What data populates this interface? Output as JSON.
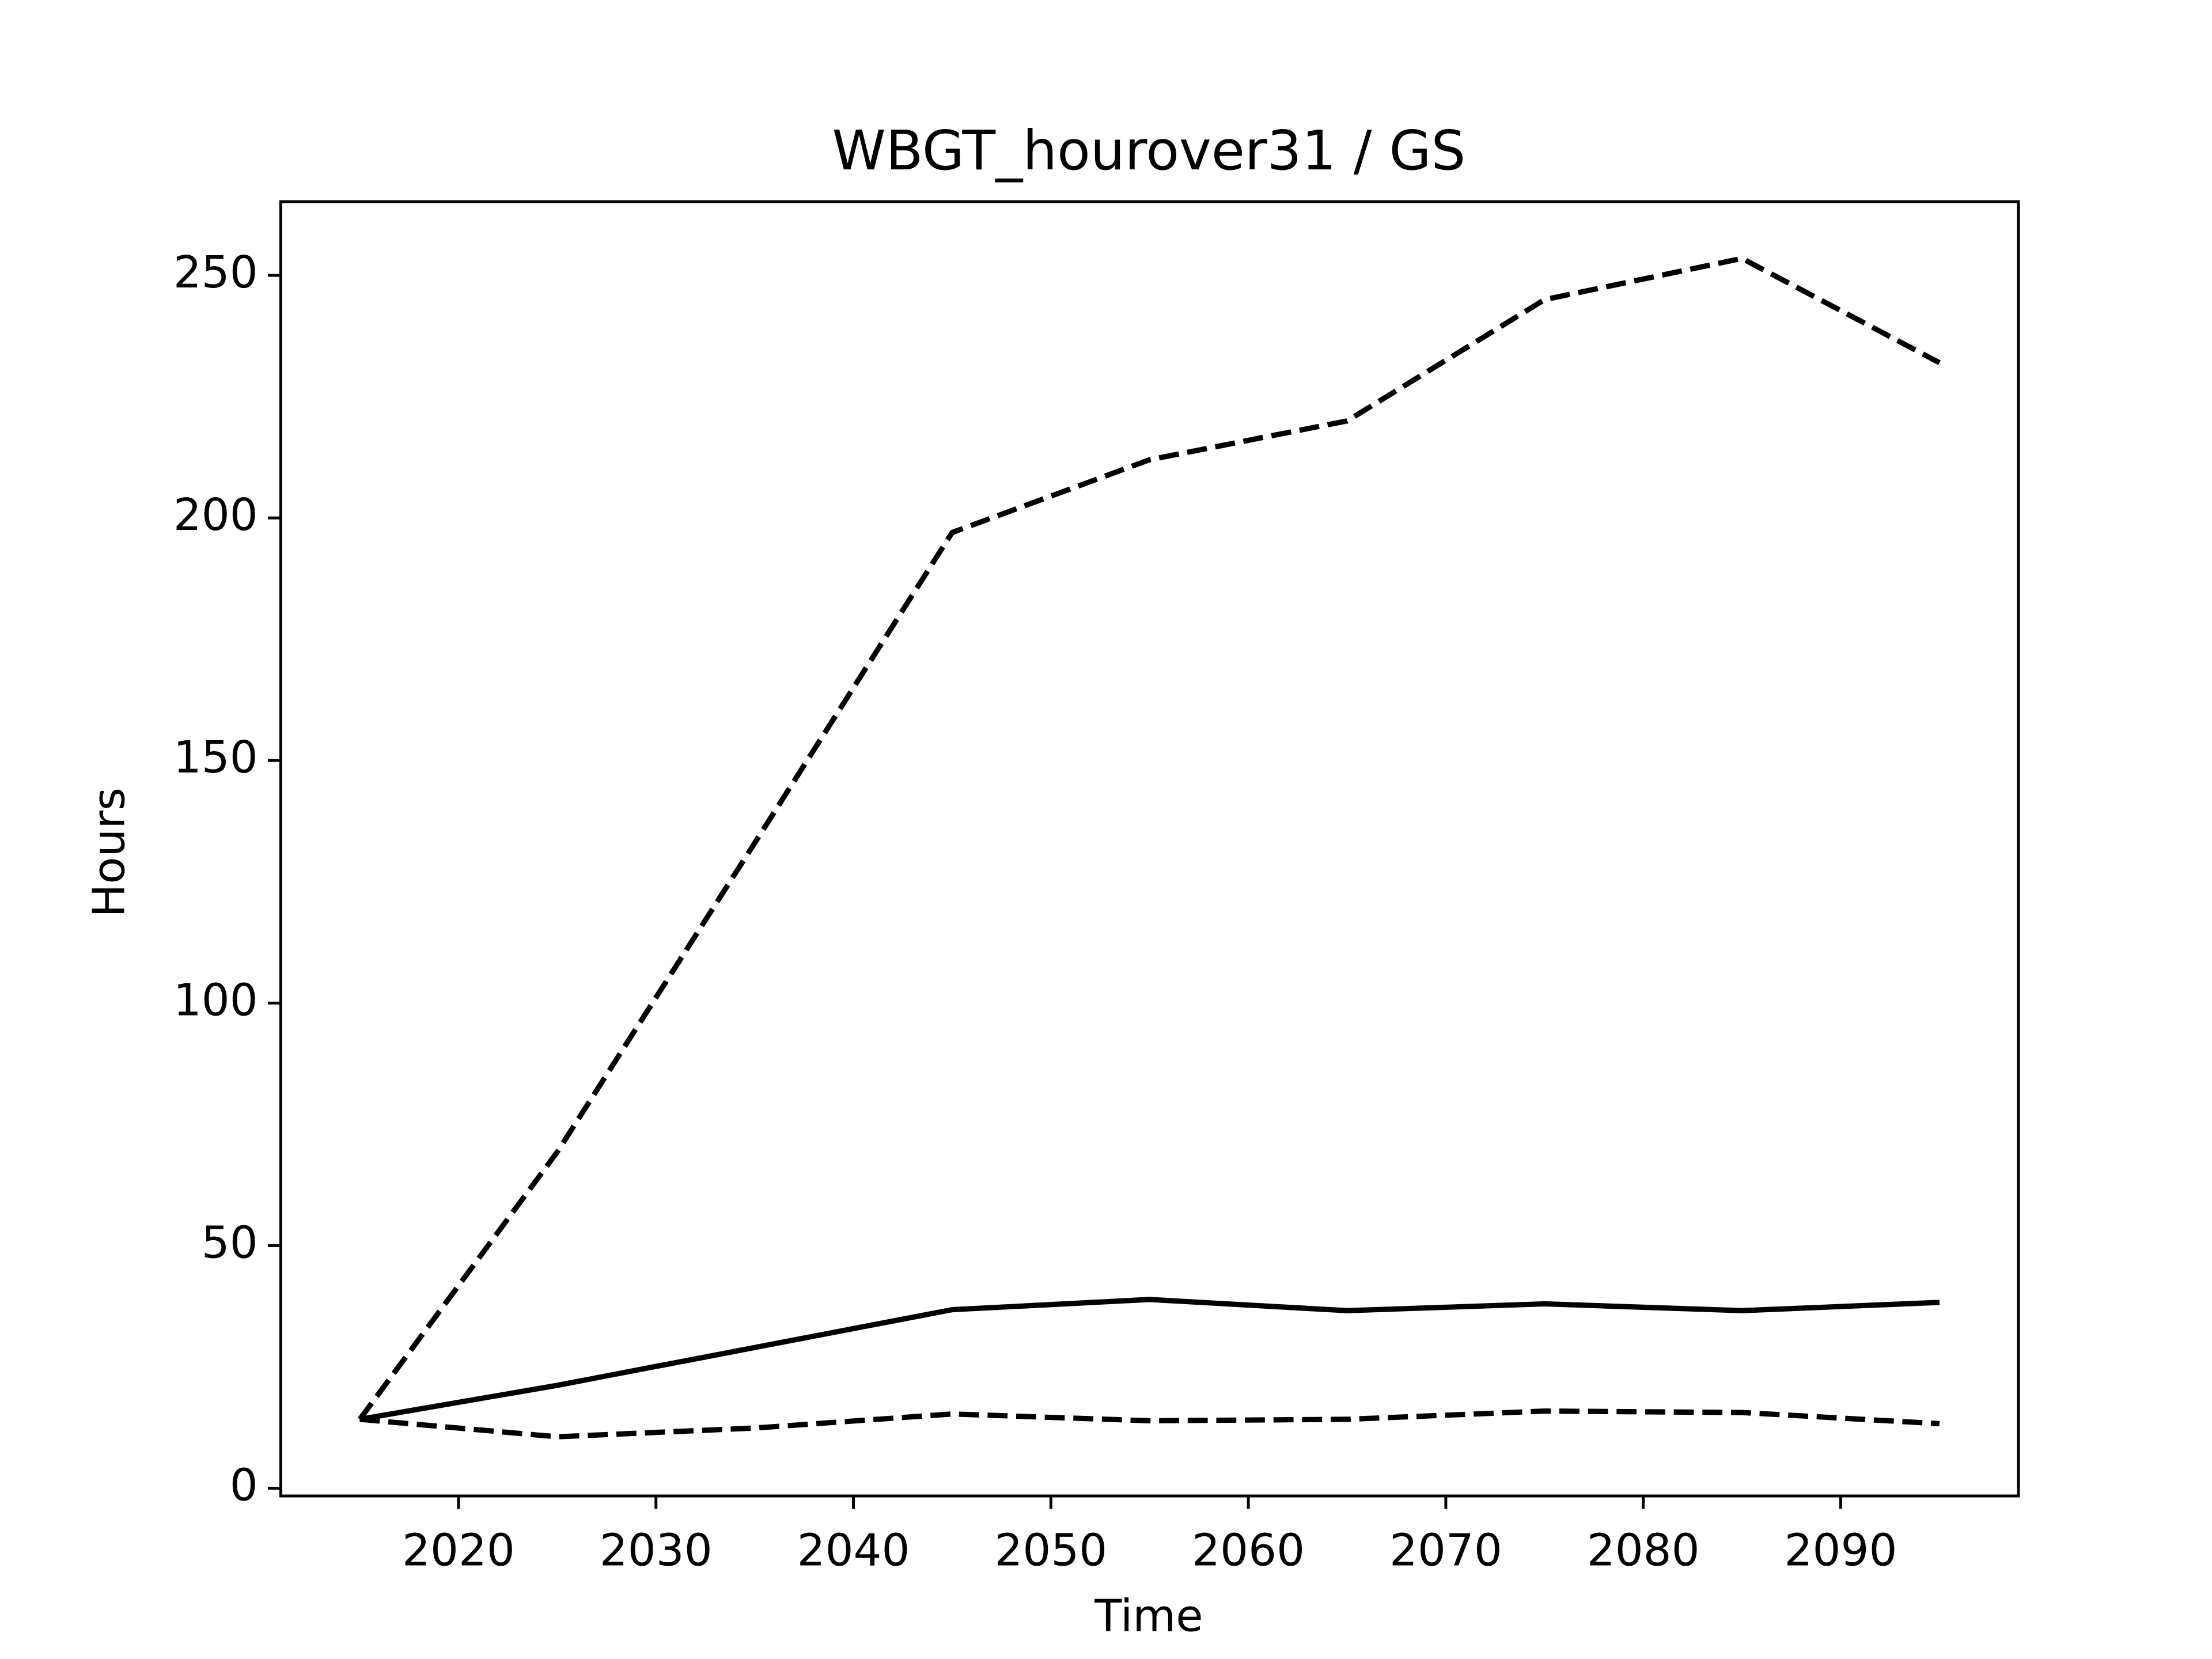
{
  "chart_data": {
    "type": "line",
    "title": "WBGT_hourover31 / GS",
    "x_label": "Time",
    "y_label": "Hours",
    "x": [
      2015,
      2025,
      2035,
      2045,
      2055,
      2065,
      2075,
      2085,
      2095
    ],
    "series": [
      {
        "color": "#000000",
        "style": "dashed",
        "values": [
          14.2,
          69.3,
          133,
          197,
          212,
          220,
          245,
          253.5,
          232
        ]
      },
      {
        "color": "#000000",
        "style": "solid",
        "values": [
          14.2,
          21.2,
          29,
          36.8,
          38.9,
          36.6,
          38,
          36.6,
          38.3
        ]
      },
      {
        "color": "#000000",
        "style": "dashed",
        "values": [
          14.2,
          10.6,
          12.4,
          15.3,
          13.9,
          14.2,
          15.9,
          15.6,
          13.3
        ]
      }
    ],
    "xlim": [
      2011,
      2099
    ],
    "xticks": [
      2020,
      2030,
      2040,
      2050,
      2060,
      2070,
      2080,
      2090
    ],
    "ylim": [
      -1.6,
      265.2
    ],
    "yticks": [
      0,
      50,
      100,
      150,
      200,
      250
    ],
    "grid": false
  }
}
